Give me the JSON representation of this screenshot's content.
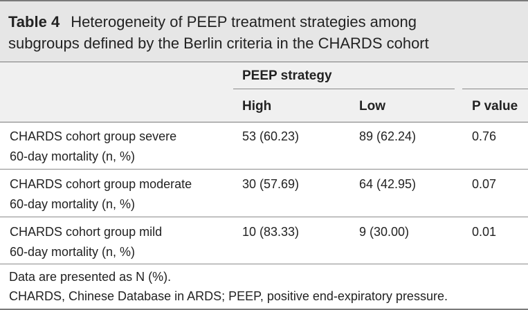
{
  "table": {
    "label": "Table 4",
    "title_line1": "Heterogeneity of PEEP treatment strategies among",
    "title_line2": "subgroups defined by the Berlin criteria in the CHARDS cohort",
    "group_header": "PEEP strategy",
    "columns": [
      "High",
      "Low",
      "P value"
    ],
    "rows": [
      {
        "label_line1": "CHARDS cohort group severe",
        "label_line2": "60-day mortality (n, %)",
        "high": "53 (60.23)",
        "low": "89 (62.24)",
        "p": "0.76"
      },
      {
        "label_line1": "CHARDS cohort group moderate",
        "label_line2": "60-day mortality (n, %)",
        "high": "30 (57.69)",
        "low": "64 (42.95)",
        "p": "0.07"
      },
      {
        "label_line1": "CHARDS cohort group mild",
        "label_line2": "60-day mortality (n, %)",
        "high": "10 (83.33)",
        "low": "9 (30.00)",
        "p": "0.01"
      }
    ],
    "footnotes": [
      "Data are presented as N (%).",
      "CHARDS, Chinese Database in ARDS; PEEP, positive end-expiratory pressure."
    ]
  },
  "colors": {
    "title_bg": "#e6e6e6",
    "header_bg": "#f0f0f0",
    "rule": "#7a7a7a"
  }
}
